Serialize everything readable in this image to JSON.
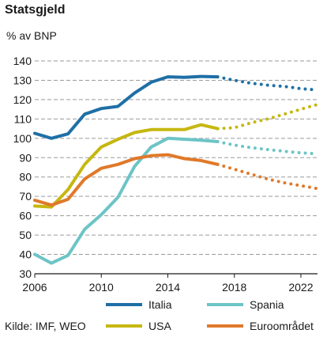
{
  "chart_data": {
    "type": "line",
    "title": "Statsgjeld",
    "ylabel": "% av BNP",
    "xlim": [
      2006,
      2023
    ],
    "ylim": [
      30,
      140
    ],
    "yticks": [
      30,
      40,
      50,
      60,
      70,
      80,
      90,
      100,
      110,
      120,
      130,
      140
    ],
    "xticks": [
      2006,
      2010,
      2014,
      2018,
      2022
    ],
    "grid": "horizontal-dashed",
    "forecast_start": 2017,
    "series": [
      {
        "name": "Italia",
        "color": "#1f6fa6",
        "x": [
          2006,
          2007,
          2008,
          2009,
          2010,
          2011,
          2012,
          2013,
          2014,
          2015,
          2016,
          2017,
          2018,
          2019,
          2020,
          2021,
          2022,
          2023
        ],
        "values": [
          102.6,
          100.0,
          102.3,
          112.5,
          115.4,
          116.5,
          123.4,
          129.0,
          131.8,
          131.5,
          132.0,
          131.8,
          130.0,
          128.5,
          127.5,
          126.8,
          125.7,
          125.0
        ]
      },
      {
        "name": "Spania",
        "color": "#6cc4c6",
        "x": [
          2006,
          2007,
          2008,
          2009,
          2010,
          2011,
          2012,
          2013,
          2014,
          2015,
          2016,
          2017,
          2018,
          2019,
          2020,
          2021,
          2022,
          2023
        ],
        "values": [
          40.0,
          35.5,
          39.5,
          53.0,
          60.5,
          69.5,
          85.5,
          95.5,
          100.0,
          99.5,
          99.0,
          98.3,
          96.5,
          95.2,
          94.2,
          93.3,
          92.5,
          92.0
        ]
      },
      {
        "name": "USA",
        "color": "#c6b710",
        "x": [
          2006,
          2007,
          2008,
          2009,
          2010,
          2011,
          2012,
          2013,
          2014,
          2015,
          2016,
          2017,
          2018,
          2019,
          2020,
          2021,
          2022,
          2023
        ],
        "values": [
          65.0,
          64.5,
          73.5,
          86.5,
          95.5,
          99.5,
          103.0,
          104.5,
          104.5,
          104.5,
          107.0,
          105.0,
          105.5,
          108.0,
          110.0,
          112.5,
          115.0,
          117.5
        ]
      },
      {
        "name": "Euroområdet",
        "color": "#e0792a",
        "x": [
          2006,
          2007,
          2008,
          2009,
          2010,
          2011,
          2012,
          2013,
          2014,
          2015,
          2016,
          2017,
          2018,
          2019,
          2020,
          2021,
          2022,
          2023
        ],
        "values": [
          68.0,
          65.5,
          68.5,
          79.0,
          84.5,
          86.5,
          89.5,
          91.0,
          91.5,
          89.5,
          88.5,
          86.5,
          84.0,
          81.5,
          79.0,
          77.0,
          75.5,
          74.0
        ]
      }
    ],
    "legend": {
      "placement": "bottom",
      "source": "Kilde: IMF, WEO"
    }
  }
}
